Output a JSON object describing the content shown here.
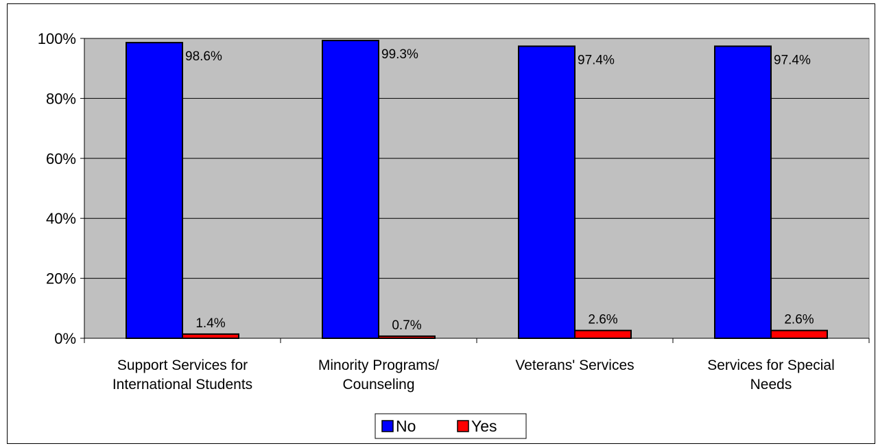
{
  "chart_data": {
    "type": "bar",
    "title": "",
    "xlabel": "",
    "ylabel": "",
    "categories": [
      [
        "Support Services for",
        "International Students"
      ],
      [
        "Minority Programs/",
        "Counseling"
      ],
      [
        "Veterans' Services"
      ],
      [
        "Services for Special",
        "Needs"
      ]
    ],
    "series": [
      {
        "name": "No",
        "values": [
          98.6,
          99.3,
          97.4,
          97.4
        ],
        "labels": [
          "98.6%",
          "99.3%",
          "97.4%",
          "97.4%"
        ],
        "color": "#0000FF"
      },
      {
        "name": "Yes",
        "values": [
          1.4,
          0.7,
          2.6,
          2.6
        ],
        "labels": [
          "1.4%",
          "0.7%",
          "2.6%",
          "2.6%"
        ],
        "color": "#FF0000"
      }
    ],
    "ylim": [
      0,
      100
    ],
    "yticks": [
      "0%",
      "20%",
      "40%",
      "60%",
      "80%",
      "100%"
    ],
    "grid": true,
    "plot_background": "#C0C0C0",
    "legend_position": "bottom-center"
  }
}
